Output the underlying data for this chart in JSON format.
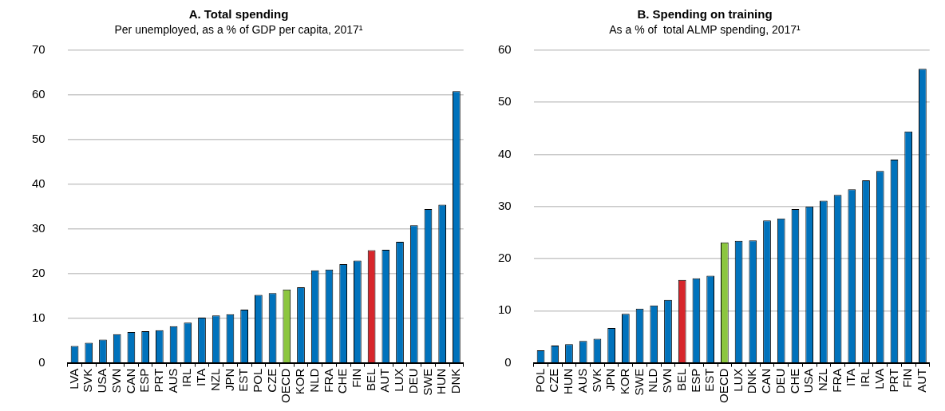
{
  "chart_data": [
    {
      "type": "bar",
      "title": "A. Total spending",
      "subtitle": "Per unemployed, as a % of GDP per capita, 2017¹",
      "categories": [
        "LVA",
        "SVK",
        "USA",
        "SVN",
        "CAN",
        "ESP",
        "PRT",
        "AUS",
        "IRL",
        "ITA",
        "NZL",
        "JPN",
        "EST",
        "POL",
        "CZE",
        "OECD",
        "KOR",
        "NLD",
        "FRA",
        "CHE",
        "FIN",
        "BEL",
        "AUT",
        "LUX",
        "DEU",
        "SWE",
        "HUN",
        "DNK"
      ],
      "values": [
        3.8,
        4.5,
        5.2,
        6.4,
        6.9,
        7.1,
        7.3,
        8.2,
        9.0,
        10.1,
        10.6,
        10.9,
        11.9,
        15.2,
        15.6,
        16.4,
        16.9,
        20.7,
        20.9,
        22.1,
        22.9,
        25.2,
        25.3,
        27.1,
        30.8,
        34.4,
        35.4,
        60.8
      ],
      "colors": [
        "#0072bc",
        "#0072bc",
        "#0072bc",
        "#0072bc",
        "#0072bc",
        "#0072bc",
        "#0072bc",
        "#0072bc",
        "#0072bc",
        "#0072bc",
        "#0072bc",
        "#0072bc",
        "#0072bc",
        "#0072bc",
        "#0072bc",
        "#8cc63f",
        "#0072bc",
        "#0072bc",
        "#0072bc",
        "#0072bc",
        "#0072bc",
        "#d7262b",
        "#0072bc",
        "#0072bc",
        "#0072bc",
        "#0072bc",
        "#0072bc",
        "#0072bc"
      ],
      "ylim": [
        0,
        70
      ],
      "yticks": [
        0,
        10,
        20,
        30,
        40,
        50,
        60,
        70
      ],
      "grid": "y",
      "legend": false
    },
    {
      "type": "bar",
      "title": "B. Spending on training",
      "subtitle": "As a % of  total ALMP spending, 2017¹",
      "categories": [
        "POL",
        "CZE",
        "HUN",
        "AUS",
        "SVK",
        "JPN",
        "KOR",
        "SWE",
        "NLD",
        "SVN",
        "BEL",
        "ESP",
        "EST",
        "OECD",
        "LUX",
        "DNK",
        "CAN",
        "DEU",
        "CHE",
        "USA",
        "NZL",
        "FRA",
        "ITA",
        "IRL",
        "LVA",
        "PRT",
        "FIN",
        "AUT"
      ],
      "values": [
        2.4,
        3.3,
        3.6,
        4.2,
        4.6,
        6.7,
        9.4,
        10.4,
        11.0,
        12.1,
        15.9,
        16.2,
        16.7,
        23.1,
        23.4,
        23.5,
        27.3,
        27.7,
        29.5,
        30.0,
        31.1,
        32.2,
        33.3,
        35.0,
        36.8,
        39.0,
        44.4,
        56.4
      ],
      "colors": [
        "#0072bc",
        "#0072bc",
        "#0072bc",
        "#0072bc",
        "#0072bc",
        "#0072bc",
        "#0072bc",
        "#0072bc",
        "#0072bc",
        "#0072bc",
        "#d7262b",
        "#0072bc",
        "#0072bc",
        "#8cc63f",
        "#0072bc",
        "#0072bc",
        "#0072bc",
        "#0072bc",
        "#0072bc",
        "#0072bc",
        "#0072bc",
        "#0072bc",
        "#0072bc",
        "#0072bc",
        "#0072bc",
        "#0072bc",
        "#0072bc",
        "#0072bc"
      ],
      "ylim": [
        0,
        60
      ],
      "yticks": [
        0,
        10,
        20,
        30,
        40,
        50,
        60
      ],
      "grid": "y",
      "legend": false
    }
  ]
}
